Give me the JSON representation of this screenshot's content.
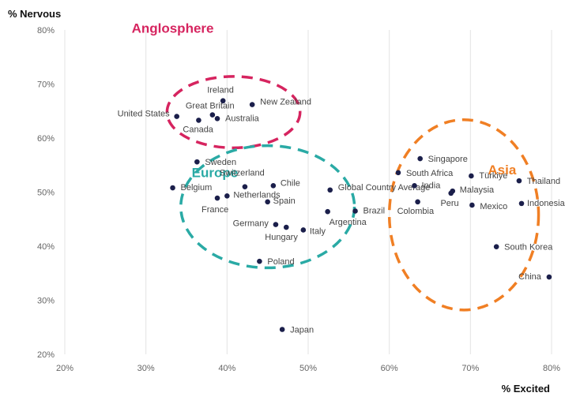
{
  "chart_data": {
    "type": "scatter",
    "xlabel": "% Excited",
    "ylabel": "% Nervous",
    "xlim": [
      20,
      80
    ],
    "ylim": [
      20,
      80
    ],
    "x_ticks": [
      "20%",
      "30%",
      "40%",
      "50%",
      "60%",
      "70%",
      "80%"
    ],
    "y_ticks": [
      "20%",
      "30%",
      "40%",
      "50%",
      "60%",
      "70%",
      "80%"
    ],
    "grid": "vertical",
    "colors": {
      "point": "#1b1f4b",
      "anglosphere": "#d6245f",
      "europe": "#2aaaa5",
      "asia": "#f07f24"
    },
    "points": [
      {
        "label": "Ireland",
        "x": 39.5,
        "y": 66.9
      },
      {
        "label": "New Zealand",
        "x": 43.1,
        "y": 66.2
      },
      {
        "label": "Great Britain",
        "x": 38.2,
        "y": 64.3
      },
      {
        "label": "United States",
        "x": 33.8,
        "y": 64.0
      },
      {
        "label": "Australia",
        "x": 38.8,
        "y": 63.6
      },
      {
        "label": "Canada",
        "x": 36.5,
        "y": 63.3
      },
      {
        "label": "Sweden",
        "x": 36.3,
        "y": 55.6
      },
      {
        "label": "Switzerland",
        "x": 42.2,
        "y": 51.0
      },
      {
        "label": "Chile",
        "x": 45.7,
        "y": 51.2
      },
      {
        "label": "Belgium",
        "x": 33.3,
        "y": 50.8
      },
      {
        "label": "Netherlands",
        "x": 40.0,
        "y": 49.3
      },
      {
        "label": "France",
        "x": 38.8,
        "y": 48.9
      },
      {
        "label": "Spain",
        "x": 45.0,
        "y": 48.2
      },
      {
        "label": "Global Country Average",
        "x": 52.7,
        "y": 50.4
      },
      {
        "label": "Brazil",
        "x": 55.8,
        "y": 46.5
      },
      {
        "label": "Argentina",
        "x": 52.4,
        "y": 46.4
      },
      {
        "label": "Germany",
        "x": 46.0,
        "y": 44.0
      },
      {
        "label": "Hungary",
        "x": 47.3,
        "y": 43.5
      },
      {
        "label": "Italy",
        "x": 49.4,
        "y": 43.0
      },
      {
        "label": "Poland",
        "x": 44.0,
        "y": 37.2
      },
      {
        "label": "Japan",
        "x": 46.8,
        "y": 24.6
      },
      {
        "label": "Singapore",
        "x": 63.8,
        "y": 56.2
      },
      {
        "label": "South Africa",
        "x": 61.1,
        "y": 53.6
      },
      {
        "label": "India",
        "x": 63.1,
        "y": 51.2
      },
      {
        "label": "Colombia",
        "x": 63.5,
        "y": 48.2
      },
      {
        "label": "Türkiye",
        "x": 70.1,
        "y": 53.0
      },
      {
        "label": "Malaysia",
        "x": 67.8,
        "y": 50.2
      },
      {
        "label": "Peru",
        "x": 67.6,
        "y": 49.8
      },
      {
        "label": "Mexico",
        "x": 70.2,
        "y": 47.6
      },
      {
        "label": "Thailand",
        "x": 76.0,
        "y": 52.1
      },
      {
        "label": "Indonesia",
        "x": 76.3,
        "y": 47.9
      },
      {
        "label": "South Korea",
        "x": 73.2,
        "y": 39.9
      },
      {
        "label": "China",
        "x": 79.7,
        "y": 34.3
      }
    ],
    "groups": [
      {
        "label": "Anglosphere",
        "color": "#d6245f",
        "cx": 40.8,
        "cy": 64.8,
        "rx": 8.2,
        "ry": 6.6
      },
      {
        "label": "Europe",
        "color": "#2aaaa5",
        "cx": 45.0,
        "cy": 47.3,
        "rx": 10.7,
        "ry": 11.3
      },
      {
        "label": "Asia",
        "color": "#f07f24",
        "cx": 69.2,
        "cy": 45.8,
        "rx": 9.2,
        "ry": 17.6
      }
    ]
  }
}
